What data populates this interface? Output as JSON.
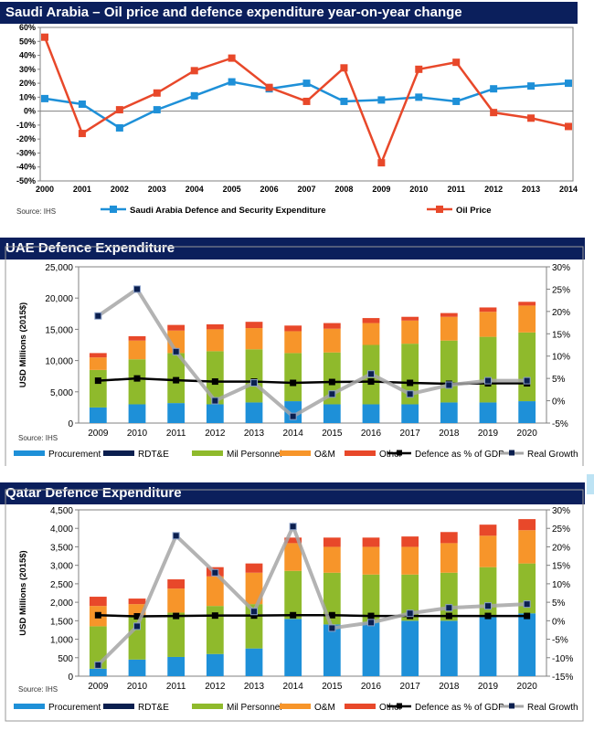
{
  "chart_data": [
    {
      "type": "line",
      "title": "Saudi Arabia – Oil price and defence expenditure year-on-year change",
      "source": "Source: IHS",
      "categories": [
        "2000",
        "2001",
        "2002",
        "2003",
        "2004",
        "2005",
        "2006",
        "2007",
        "2008",
        "2009",
        "2010",
        "2011",
        "2012",
        "2013",
        "2014"
      ],
      "ylim": [
        -50,
        60
      ],
      "yticks": [
        60,
        50,
        40,
        30,
        20,
        10,
        0,
        -10,
        -20,
        -30,
        -40,
        -50
      ],
      "ytick_labels": [
        "60%",
        "50%",
        "40%",
        "30%",
        "20%",
        "10%",
        "0%",
        "-10%",
        "-20%",
        "-30%",
        "-40%",
        "-50%"
      ],
      "series": [
        {
          "name": "Saudi Arabia Defence and Security Expenditure",
          "color": "#1e90d8",
          "values": [
            9,
            5,
            -12,
            1,
            11,
            21,
            16,
            20,
            7,
            8,
            10,
            7,
            16,
            18,
            20
          ]
        },
        {
          "name": "Oil Price",
          "color": "#e8482a",
          "values": [
            53,
            -16,
            1,
            13,
            29,
            38,
            17,
            7,
            31,
            -37,
            30,
            35,
            -1,
            -5,
            -11
          ]
        }
      ]
    },
    {
      "type": "bar",
      "stacked": true,
      "title": "UAE Defence Expenditure",
      "ylabel": "USD Millions (2015$)",
      "source": "Source: IHS",
      "categories": [
        "2009",
        "2010",
        "2011",
        "2012",
        "2013",
        "2014",
        "2015",
        "2016",
        "2017",
        "2018",
        "2019",
        "2020"
      ],
      "ylim": [
        0,
        25000
      ],
      "yticks": [
        0,
        5000,
        10000,
        15000,
        20000,
        25000
      ],
      "ytick_labels": [
        "0",
        "5,000",
        "10,000",
        "15,000",
        "20,000",
        "25,000"
      ],
      "y2lim": [
        -5,
        30
      ],
      "y2ticks": [
        -5,
        0,
        5,
        10,
        15,
        20,
        25,
        30
      ],
      "y2tick_labels": [
        "-5%",
        "0%",
        "5%",
        "10%",
        "15%",
        "20%",
        "25%",
        "30%"
      ],
      "series": [
        {
          "name": "Procurement",
          "color": "#1e90d8",
          "values": [
            2500,
            3000,
            3200,
            3000,
            3300,
            3500,
            3000,
            3000,
            3000,
            3300,
            3300,
            3500
          ]
        },
        {
          "name": "RDT&E",
          "color": "#0b1f4f",
          "values": [
            0,
            0,
            0,
            0,
            0,
            0,
            0,
            0,
            0,
            0,
            0,
            0
          ]
        },
        {
          "name": "Mil Personnel",
          "color": "#8fba2c",
          "values": [
            6000,
            7200,
            8000,
            8500,
            8500,
            7700,
            8300,
            9500,
            9700,
            9900,
            10500,
            11000
          ]
        },
        {
          "name": "O&M",
          "color": "#f7952a",
          "values": [
            2000,
            3000,
            3600,
            3500,
            3400,
            3500,
            3800,
            3500,
            3700,
            3800,
            4000,
            4300
          ]
        },
        {
          "name": "Other",
          "color": "#e8482a",
          "values": [
            700,
            700,
            900,
            800,
            1000,
            900,
            900,
            800,
            600,
            600,
            700,
            600
          ]
        }
      ],
      "lines": [
        {
          "name": "Defence as % of GDP",
          "color": "#000000",
          "values": [
            4.5,
            5.0,
            4.6,
            4.3,
            4.3,
            4.0,
            4.2,
            4.3,
            4.0,
            3.8,
            3.9,
            3.9
          ]
        },
        {
          "name": "Real Growth",
          "color": "#a6a6a6",
          "values": [
            19,
            25,
            11,
            0,
            4,
            -3.5,
            1.5,
            6,
            1.5,
            3.5,
            4.5,
            4.5
          ]
        }
      ]
    },
    {
      "type": "bar",
      "stacked": true,
      "title": "Qatar Defence Expenditure",
      "ylabel": "USD Millions (2015$)",
      "source": "Source: IHS",
      "categories": [
        "2009",
        "2010",
        "2011",
        "2012",
        "2013",
        "2014",
        "2015",
        "2016",
        "2017",
        "2018",
        "2019",
        "2020"
      ],
      "ylim": [
        0,
        4500
      ],
      "yticks": [
        0,
        500,
        1000,
        1500,
        2000,
        2500,
        3000,
        3500,
        4000,
        4500
      ],
      "ytick_labels": [
        "0",
        "500",
        "1,000",
        "1,500",
        "2,000",
        "2,500",
        "3,000",
        "3,500",
        "4,000",
        "4,500"
      ],
      "y2lim": [
        -15,
        30
      ],
      "y2ticks": [
        -15,
        -10,
        -5,
        0,
        5,
        10,
        15,
        20,
        25,
        30
      ],
      "y2tick_labels": [
        "-15%",
        "-10%",
        "-5%",
        "0%",
        "5%",
        "10%",
        "15%",
        "20%",
        "25%",
        "30%"
      ],
      "series": [
        {
          "name": "Procurement",
          "color": "#1e90d8",
          "values": [
            200,
            450,
            520,
            600,
            750,
            1550,
            1400,
            1450,
            1500,
            1500,
            1600,
            1700
          ]
        },
        {
          "name": "RDT&E",
          "color": "#0b1f4f",
          "values": [
            0,
            0,
            0,
            0,
            0,
            0,
            0,
            0,
            0,
            0,
            0,
            0
          ]
        },
        {
          "name": "Mil Personnel",
          "color": "#8fba2c",
          "values": [
            1150,
            1200,
            1200,
            1300,
            1200,
            1300,
            1400,
            1300,
            1250,
            1300,
            1350,
            1350
          ]
        },
        {
          "name": "O&M",
          "color": "#f7952a",
          "values": [
            550,
            300,
            650,
            800,
            850,
            750,
            700,
            750,
            750,
            800,
            850,
            900
          ]
        },
        {
          "name": "Other",
          "color": "#e8482a",
          "values": [
            250,
            150,
            250,
            250,
            250,
            150,
            250,
            250,
            280,
            300,
            300,
            300
          ]
        }
      ],
      "lines": [
        {
          "name": "Defence as % of GDP",
          "color": "#000000",
          "values": [
            1.5,
            1.2,
            1.3,
            1.4,
            1.4,
            1.5,
            1.5,
            1.3,
            1.3,
            1.3,
            1.3,
            1.3
          ]
        },
        {
          "name": "Real Growth",
          "color": "#a6a6a6",
          "values": [
            -12,
            -1.5,
            23,
            13,
            2.5,
            25.5,
            -2,
            -0.5,
            2,
            3.5,
            4,
            4.5
          ]
        }
      ]
    }
  ]
}
